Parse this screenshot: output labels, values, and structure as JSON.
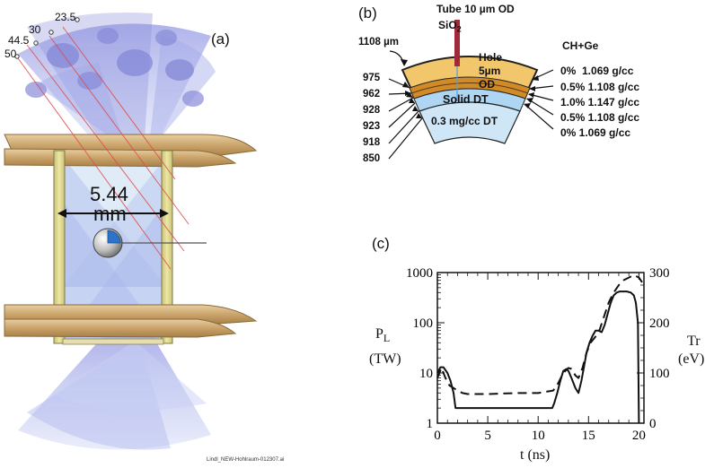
{
  "panel_a": {
    "label": "(a)",
    "angles": [
      "23.5",
      "30",
      "44.5",
      "50"
    ],
    "dimension_value": "5.44",
    "dimension_unit": "mm",
    "caption": "Lindl_NEW-Hohlraum-012307.ai"
  },
  "panel_b": {
    "label": "(b)",
    "tube_line1": "Tube 10 µm OD",
    "tube_line2": "SiO",
    "tube_line2_sub": "2",
    "outer_radius": "1108 µm",
    "material": "CH+Ge",
    "hole_label": "Hole",
    "hole_size": "5µm",
    "od_label": "OD",
    "solid_dt": "Solid DT",
    "gas_dt": "0.3 mg/cc DT",
    "radii": [
      "975",
      "962",
      "928",
      "923",
      "918",
      "850"
    ],
    "dopants": [
      "0%  1.069 g/cc",
      "0.5% 1.108 g/cc",
      "1.0% 1.147 g/cc",
      "0.5% 1.108 g/cc",
      "0% 1.069 g/cc"
    ]
  },
  "panel_c": {
    "label": "(c)",
    "chart_data": {
      "type": "line",
      "xlabel": "t (ns)",
      "ylabel_left": "P",
      "ylabel_left_sub": "L",
      "ylabel_left_unit": "(TW)",
      "ylabel_right": "Tr",
      "ylabel_right_unit": "(eV)",
      "xlim": [
        0,
        20.5
      ],
      "ylim_left": [
        1,
        1000
      ],
      "ylim_right": [
        0,
        300
      ],
      "left_scale": "log",
      "x_ticks": [
        "0",
        "5",
        "10",
        "15",
        "20"
      ],
      "y_left_ticks": [
        "1",
        "10",
        "100",
        "1000"
      ],
      "y_right_ticks": [
        "0",
        "100",
        "200",
        "300"
      ],
      "series": [
        {
          "style": "solid",
          "axis": "left",
          "x": [
            0,
            0.3,
            0.6,
            1.0,
            1.3,
            1.6,
            1.8,
            2.0,
            11.4,
            11.6,
            11.9,
            12.2,
            12.5,
            12.8,
            13.0,
            13.3,
            13.7,
            14.0,
            14.3,
            14.6,
            14.8,
            15.1,
            15.4,
            15.7,
            16.0,
            16.3,
            16.6,
            16.9,
            17.2,
            17.5,
            17.8,
            18.1,
            18.4,
            18.8,
            19.2,
            19.5,
            19.7,
            19.9,
            20.0
          ],
          "y": [
            10,
            13,
            13,
            10,
            7,
            4,
            2,
            2,
            2,
            2.5,
            4,
            7,
            11,
            12,
            11,
            8,
            5,
            4,
            7,
            15,
            25,
            40,
            55,
            70,
            70,
            65,
            90,
            150,
            250,
            350,
            400,
            420,
            420,
            420,
            400,
            350,
            250,
            100,
            1
          ]
        },
        {
          "style": "dashed",
          "axis": "right",
          "x": [
            0,
            0.4,
            0.8,
            1.2,
            1.6,
            2.0,
            2.5,
            3.0,
            5.0,
            8.0,
            10.0,
            11.5,
            12.0,
            12.5,
            13.0,
            13.3,
            13.7,
            14.0,
            14.4,
            14.8,
            15.2,
            15.6,
            16.0,
            16.5,
            17.0,
            17.5,
            18.0,
            18.5,
            19.0,
            19.5,
            20.0,
            20.5
          ],
          "y": [
            90,
            110,
            90,
            75,
            70,
            65,
            60,
            58,
            58,
            60,
            60,
            65,
            80,
            100,
            110,
            108,
            95,
            90,
            110,
            140,
            160,
            170,
            180,
            210,
            240,
            260,
            275,
            285,
            290,
            295,
            290,
            275
          ]
        }
      ]
    }
  }
}
